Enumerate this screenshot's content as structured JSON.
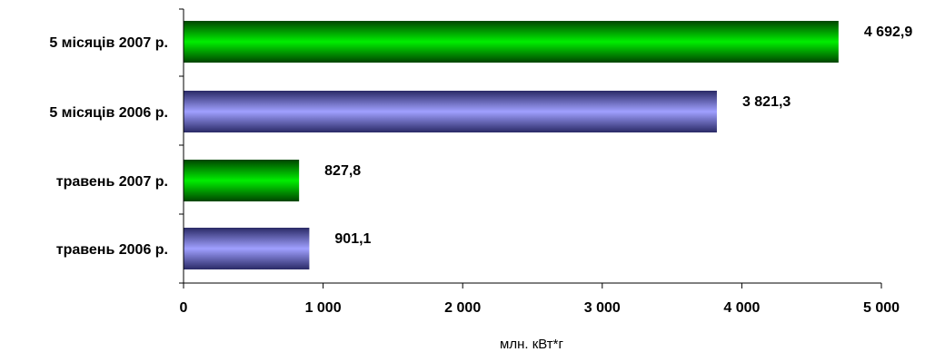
{
  "chart_data": {
    "type": "bar",
    "orientation": "horizontal",
    "categories": [
      "5 місяців 2007 р.",
      "5 місяців 2006 р.",
      "травень 2007 р.",
      "травень 2006 р."
    ],
    "values": [
      4692.9,
      3821.3,
      827.8,
      901.1
    ],
    "value_labels": [
      "4 692,9",
      "3 821,3",
      "827,8",
      "901,1"
    ],
    "bar_colors": [
      "green",
      "blue",
      "green",
      "blue"
    ],
    "colors": {
      "green": "#00e000",
      "blue": "#9999ff"
    },
    "xticks": [
      0,
      1000,
      2000,
      3000,
      4000,
      5000
    ],
    "xtick_labels": [
      "0",
      "1 000",
      "2 000",
      "3 000",
      "4 000",
      "5 000"
    ],
    "xlim": [
      0,
      5000
    ],
    "xlabel": "млн. кВт*г",
    "ylabel": "",
    "title": "",
    "grid": false,
    "legend": false
  }
}
